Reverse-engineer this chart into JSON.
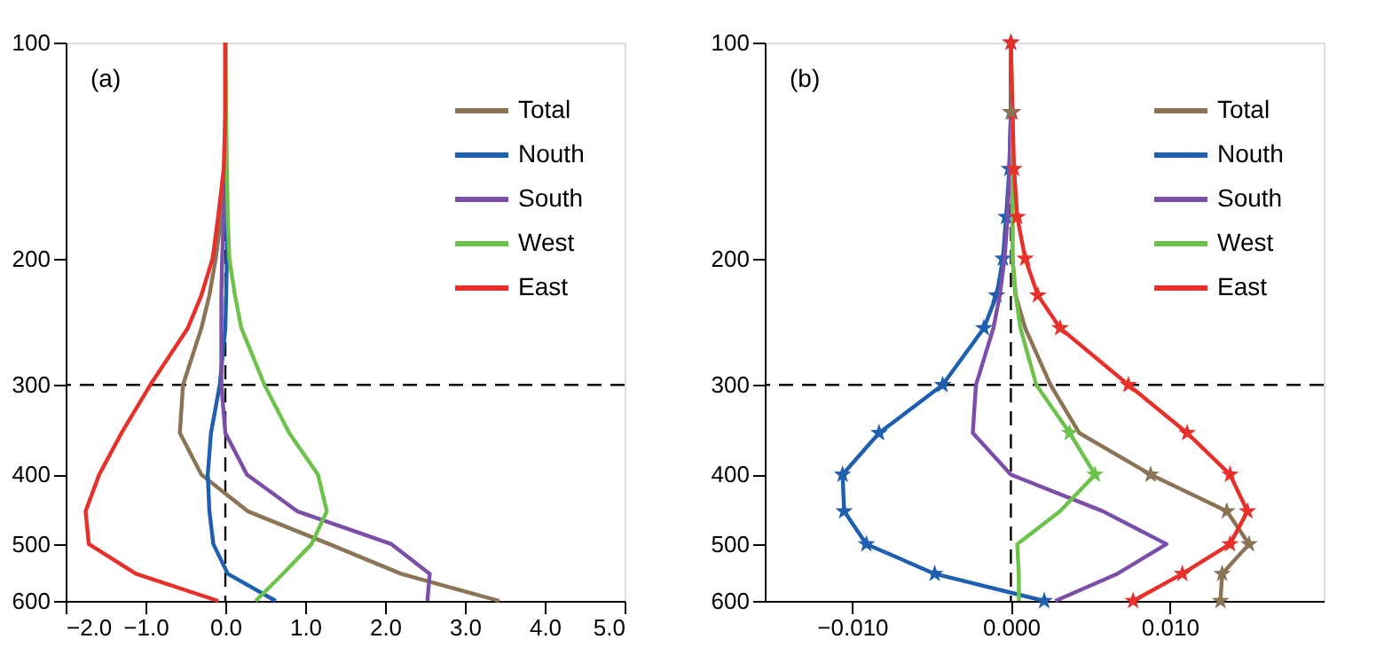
{
  "chart_data": [
    {
      "type": "line",
      "orientation": "horizontal",
      "log": "y",
      "legend": "top right",
      "grid": false,
      "xlim": [
        -2.0,
        5.0
      ],
      "xticks": [
        {
          "value": -2.0,
          "label": "−2.0"
        },
        {
          "value": -1.0,
          "label": "−1.0"
        },
        {
          "value": 0.0,
          "label": "0.0"
        },
        {
          "value": 1.0,
          "label": "1.0"
        },
        {
          "value": 2.0,
          "label": "2.0"
        },
        {
          "value": 3.0,
          "label": "3.0"
        },
        {
          "value": 4.0,
          "label": "4.0"
        },
        {
          "value": 5.0,
          "label": "5.0"
        }
      ],
      "ylim": [
        600,
        100
      ],
      "yticks": [
        100,
        200,
        300,
        400,
        500,
        600
      ],
      "x": [
        100,
        125,
        150,
        175,
        200,
        225,
        250,
        300,
        350,
        400,
        450,
        500,
        550,
        600
      ],
      "series": [
        {
          "name": "Total",
          "color": "#8b7355",
          "values": [
            0.0,
            0.0,
            0.0,
            -0.05,
            -0.12,
            -0.2,
            -0.3,
            -0.53,
            -0.57,
            -0.3,
            0.28,
            1.3,
            2.2,
            3.43
          ]
        },
        {
          "name": "Nouth",
          "color": "#1f5fb0",
          "values": [
            null,
            null,
            0.01,
            0.02,
            0.02,
            0.01,
            0.0,
            -0.07,
            -0.18,
            -0.22,
            -0.2,
            -0.15,
            0.03,
            0.63
          ]
        },
        {
          "name": "South",
          "color": "#7b4fa8",
          "values": [
            0.0,
            0.0,
            0.0,
            -0.02,
            -0.04,
            -0.05,
            -0.05,
            -0.05,
            0.0,
            0.27,
            0.9,
            2.08,
            2.56,
            2.53
          ]
        },
        {
          "name": "West",
          "color": "#6cc24a",
          "values": [
            0.0,
            0.01,
            0.02,
            0.03,
            0.05,
            0.12,
            0.2,
            0.49,
            0.8,
            1.16,
            1.27,
            1.08,
            0.72,
            0.38
          ]
        },
        {
          "name": "East",
          "color": "#e8302a",
          "values": [
            0.0,
            0.0,
            -0.02,
            -0.09,
            -0.16,
            -0.3,
            -0.47,
            -0.94,
            -1.3,
            -1.58,
            -1.75,
            -1.71,
            -1.12,
            -0.09
          ]
        }
      ],
      "ref_lines": [
        {
          "axis": "y",
          "value": 300,
          "color": "#000000",
          "line_style": "dashed"
        },
        {
          "axis": "x",
          "value": 0.0,
          "color": "#000000",
          "line_style": "dashed"
        }
      ],
      "annotations": [
        "(a)"
      ]
    },
    {
      "type": "line",
      "orientation": "horizontal",
      "log": "y",
      "legend": "top right",
      "grid": false,
      "xlim": [
        -0.0155,
        0.0197
      ],
      "xticks": [
        {
          "value": -0.01,
          "label": "−0.010"
        },
        {
          "value": 0.0,
          "label": "0.000"
        },
        {
          "value": 0.01,
          "label": "0.010"
        }
      ],
      "ylim": [
        600,
        100
      ],
      "yticks": [
        100,
        200,
        300,
        400,
        500,
        600
      ],
      "x": [
        100,
        125,
        150,
        175,
        200,
        225,
        250,
        300,
        350,
        400,
        450,
        500,
        550,
        600
      ],
      "series": [
        {
          "name": "Total",
          "color": "#8b7355",
          "values": [
            0.0,
            0.0,
            0.0001,
            0.0001,
            0.0001,
            0.0003,
            0.0009,
            0.0025,
            0.0043,
            0.0088,
            0.0136,
            0.015,
            0.0133,
            0.0132
          ]
        },
        {
          "name": "Nouth",
          "color": "#1f5fb0",
          "marker": "star",
          "values": [
            0.0,
            0.0,
            -0.0001,
            -0.0003,
            -0.0005,
            -0.0009,
            -0.0017,
            -0.0043,
            -0.0083,
            -0.0106,
            -0.0105,
            -0.0091,
            -0.0048,
            0.0021
          ]
        },
        {
          "name": "South",
          "color": "#7b4fa8",
          "values": [
            0.0,
            0.0,
            -0.0001,
            -0.0002,
            -0.0004,
            -0.0007,
            -0.0011,
            -0.0022,
            -0.0024,
            0.0,
            0.0058,
            0.0098,
            0.0067,
            0.0028
          ]
        },
        {
          "name": "West",
          "color": "#6cc24a",
          "values": [
            0.0,
            0.0001,
            0.0001,
            0.0001,
            0.0001,
            0.0003,
            0.0006,
            0.0016,
            0.0037,
            0.0053,
            0.0031,
            0.0004,
            0.0005,
            0.0005
          ]
        },
        {
          "name": "East",
          "color": "#e8302a",
          "marker": "star",
          "values": [
            0.0,
            0.0001,
            0.0002,
            0.0004,
            0.0009,
            0.0017,
            0.0031,
            0.0074,
            0.0111,
            0.0138,
            0.0149,
            0.0138,
            0.0108,
            0.0077
          ]
        },
        {
          "type": "scatter",
          "marker": "star",
          "color": "#8b7355",
          "x": [
            125,
            400,
            450,
            500,
            550,
            600
          ],
          "values": [
            0.0,
            0.0088,
            0.0136,
            0.015,
            0.0133,
            0.0132
          ]
        },
        {
          "type": "scatter",
          "marker": "star",
          "color": "#6cc24a",
          "x": [
            350,
            400
          ],
          "values": [
            0.0037,
            0.0053
          ]
        }
      ],
      "ref_lines": [
        {
          "axis": "y",
          "value": 300,
          "color": "#000000",
          "line_style": "dashed"
        },
        {
          "axis": "x",
          "value": 0.0,
          "color": "#000000",
          "line_style": "dashed"
        }
      ],
      "annotations": [
        "(b)"
      ]
    }
  ]
}
